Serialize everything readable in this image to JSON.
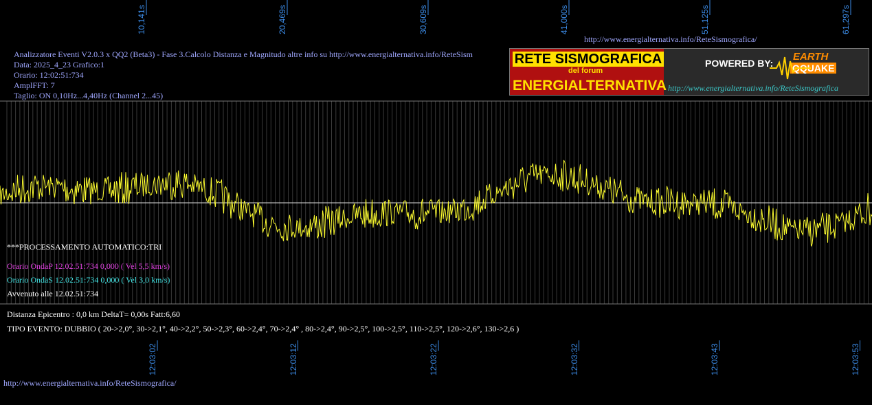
{
  "top_ticks": [
    "10,141s",
    "20,469s",
    "30,609s",
    "41,000s",
    "51,125s",
    "61,297s"
  ],
  "top_url": "http://www.energialternativa.info/ReteSismografica/",
  "header": [
    "Analizzatore Eventi V2.0.3 x QQ2 (Beta3) - Fase 3.Calcolo Distanza e Magnitudo altre info su http://www.energialternativa.info/ReteSism",
    "Data: 2025_4_23 Grafico:1",
    "Orario: 12:02:51:734",
    "AmplFFT: 7",
    "Taglio: ON 0,10Hz...4,40Hz      (Channel 2...45)"
  ],
  "logo": {
    "title": "RETE SISMOGRAFICA",
    "subtitle": "del forum",
    "name": "ENERGIALTERNATIVA",
    "powered": "POWERED BY:",
    "brand_top": "EARTH",
    "brand_bottom": "QQUAKE",
    "url": "http://www.energialternativa.info/ReteSismografica"
  },
  "processing": "***PROCESSAMENTO AUTOMATICO:TRI",
  "onda_p": "Orario OndaP 12.02.51:734  0,000 ( Vel 5,5 km/s)",
  "onda_s": "Orario OndaS 12.02.51:734  0,000 ( Vel 3,0 km/s)",
  "avvenuto": "Avvenuto alle 12.02.51:734",
  "distanza": "Distanza Epicentro : 0,0 km DeltaT= 0,00s  Fatt:6,60",
  "tipo_evento": "TIPO EVENTO: DUBBIO ( 20->2,0°, 30->2,1°, 40->2,2°, 50->2,3°, 60->2,4°, 70->2,4° , 80->2,4°, 90->2,5°, 100->2,5°, 110->2,5°, 120->2,6°, 130->2,6 )",
  "bottom_ticks": [
    "12:03:02",
    "12:03:12",
    "12:03:22",
    "12:03:32",
    "12:03:43",
    "12:03:53"
  ],
  "footer_url": "http://www.energialternativa.info/ReteSismografica/"
}
